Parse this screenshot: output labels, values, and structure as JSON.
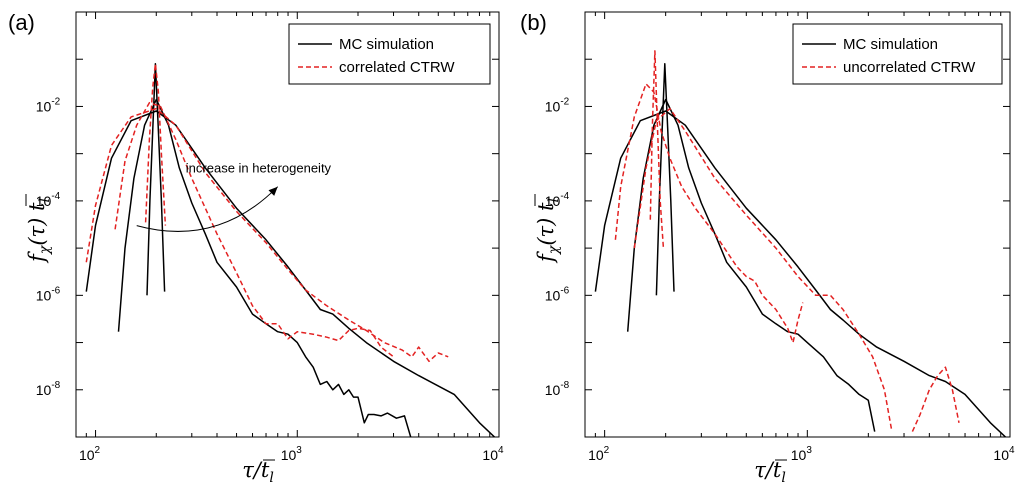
{
  "chart_data": [
    {
      "panel_label": "(a)",
      "type": "line",
      "xlabel": "τ/t̄_l",
      "ylabel": "f_χ(τ) t̄_l",
      "xscale": "log",
      "yscale": "log",
      "xlim": [
        80,
        10000
      ],
      "ylim": [
        1e-09,
        1
      ],
      "xticks": [
        {
          "base": "10",
          "exp": "2",
          "value": 100
        },
        {
          "base": "10",
          "exp": "3",
          "value": 1000
        },
        {
          "base": "10",
          "exp": "4",
          "value": 10000
        }
      ],
      "yticks": [
        {
          "base": "10",
          "exp": "-8",
          "value": 1e-08
        },
        {
          "base": "10",
          "exp": "-6",
          "value": 1e-06
        },
        {
          "base": "10",
          "exp": "-4",
          "value": 0.0001
        },
        {
          "base": "10",
          "exp": "-2",
          "value": 0.01
        }
      ],
      "grid": false,
      "legend": {
        "position": "top-right",
        "entries": [
          {
            "label": "MC simulation",
            "color": "#000000",
            "style": "solid"
          },
          {
            "label": "correlated CTRW",
            "color": "#e32222",
            "style": "dashed"
          }
        ]
      },
      "annotation": {
        "text": "increase in heterogeneity",
        "arrow_from": [
          160,
          3e-05
        ],
        "arrow_to": [
          800,
          0.0002
        ],
        "text_at": [
          280,
          0.0002
        ]
      },
      "series": [
        {
          "name": "MC simulation",
          "color": "#000000",
          "style": "solid",
          "points": [
            [
              180,
              1e-06
            ],
            [
              186,
              0.0001
            ],
            [
              192,
              0.003
            ],
            [
              198,
              0.08
            ],
            [
              205,
              0.003
            ],
            [
              212,
              0.0001
            ],
            [
              220,
              1.2e-06
            ]
          ]
        },
        {
          "name": "MC simulation",
          "color": "#000000",
          "style": "solid",
          "points": [
            [
              130,
              1.7e-07
            ],
            [
              140,
              1e-05
            ],
            [
              155,
              0.0003
            ],
            [
              175,
              0.004
            ],
            [
              200,
              0.014
            ],
            [
              230,
              0.004
            ],
            [
              260,
              0.0005
            ],
            [
              300,
              9e-05
            ],
            [
              350,
              2e-05
            ],
            [
              400,
              5e-06
            ],
            [
              500,
              1.5e-06
            ],
            [
              600,
              4e-07
            ],
            [
              700,
              2.5e-07
            ],
            [
              800,
              1.7e-07
            ],
            [
              900,
              1.5e-07
            ],
            [
              1000,
              1e-07
            ],
            [
              1100,
              5e-08
            ],
            [
              1200,
              3e-08
            ],
            [
              1300,
              1.3e-08
            ],
            [
              1400,
              1.5e-08
            ],
            [
              1500,
              1e-08
            ],
            [
              1600,
              1.3e-08
            ],
            [
              1700,
              8e-09
            ],
            [
              1800,
              1e-08
            ],
            [
              1900,
              7e-09
            ],
            [
              2000,
              7e-09
            ],
            [
              2150,
              2e-09
            ],
            [
              2250,
              3e-09
            ],
            [
              2400,
              3e-09
            ],
            [
              2600,
              2.8e-09
            ],
            [
              2800,
              3.2e-09
            ],
            [
              3100,
              2.5e-09
            ],
            [
              3400,
              2.8e-09
            ],
            [
              3650,
              1e-09
            ]
          ]
        },
        {
          "name": "MC simulation",
          "color": "#000000",
          "style": "solid",
          "points": [
            [
              90,
              1.2e-06
            ],
            [
              100,
              3e-05
            ],
            [
              120,
              0.0008
            ],
            [
              150,
              0.005
            ],
            [
              200,
              0.008
            ],
            [
              250,
              0.004
            ],
            [
              350,
              0.0005
            ],
            [
              500,
              7e-05
            ],
            [
              700,
              1.5e-05
            ],
            [
              900,
              4e-06
            ],
            [
              1100,
              1.3e-06
            ],
            [
              1300,
              5e-07
            ],
            [
              1500,
              4e-07
            ],
            [
              1800,
              2e-07
            ],
            [
              2200,
              1e-07
            ],
            [
              3000,
              4e-08
            ],
            [
              4000,
              2e-08
            ],
            [
              6000,
              8e-09
            ],
            [
              8000,
              2e-09
            ],
            [
              9500,
              1e-09
            ]
          ]
        },
        {
          "name": "correlated CTRW",
          "color": "#e32222",
          "style": "dashed",
          "points": [
            [
              177,
              3.5e-05
            ],
            [
              185,
              0.002
            ],
            [
              192,
              0.025
            ],
            [
              198,
              0.08
            ],
            [
              205,
              0.02
            ],
            [
              212,
              0.001
            ],
            [
              222,
              3e-05
            ]
          ]
        },
        {
          "name": "correlated CTRW",
          "color": "#e32222",
          "style": "dashed",
          "points": [
            [
              125,
              2.5e-05
            ],
            [
              140,
              0.0007
            ],
            [
              160,
              0.004
            ],
            [
              185,
              0.012
            ],
            [
              210,
              0.01
            ],
            [
              250,
              0.002
            ],
            [
              300,
              0.0003
            ],
            [
              400,
              2e-05
            ],
            [
              500,
              3e-06
            ],
            [
              600,
              6e-07
            ],
            [
              700,
              2.5e-07
            ],
            [
              800,
              2.5e-07
            ],
            [
              900,
              1.2e-07
            ],
            [
              1000,
              1.7e-07
            ],
            [
              1200,
              1.5e-07
            ],
            [
              1400,
              1.3e-07
            ],
            [
              1600,
              1.1e-07
            ],
            [
              1800,
              1.8e-07
            ],
            [
              2000,
              2e-07
            ],
            [
              2300,
              1.8e-07
            ],
            [
              2600,
              8e-08
            ],
            [
              3000,
              5e-08
            ]
          ]
        },
        {
          "name": "correlated CTRW",
          "color": "#e32222",
          "style": "dashed",
          "points": [
            [
              90,
              5e-06
            ],
            [
              100,
              8e-05
            ],
            [
              120,
              0.0015
            ],
            [
              150,
              0.006
            ],
            [
              200,
              0.009
            ],
            [
              250,
              0.004
            ],
            [
              350,
              0.0004
            ],
            [
              500,
              6e-05
            ],
            [
              700,
              1.3e-05
            ],
            [
              900,
              3.5e-06
            ],
            [
              1100,
              1.3e-06
            ],
            [
              1400,
              6e-07
            ],
            [
              1800,
              3e-07
            ],
            [
              2200,
              1.8e-07
            ],
            [
              2700,
              1e-07
            ],
            [
              3300,
              7e-08
            ],
            [
              3700,
              5e-08
            ],
            [
              4000,
              8e-08
            ],
            [
              4500,
              4e-08
            ],
            [
              5000,
              6e-08
            ],
            [
              5600,
              5e-08
            ]
          ]
        }
      ]
    },
    {
      "panel_label": "(b)",
      "type": "line",
      "xlabel": "τ/t̄_l",
      "ylabel": "f_χ(τ) t̄_l",
      "xscale": "log",
      "yscale": "log",
      "xlim": [
        80,
        10000
      ],
      "ylim": [
        1e-09,
        1
      ],
      "xticks": [
        {
          "base": "10",
          "exp": "2",
          "value": 100
        },
        {
          "base": "10",
          "exp": "3",
          "value": 1000
        },
        {
          "base": "10",
          "exp": "4",
          "value": 10000
        }
      ],
      "yticks": [
        {
          "base": "10",
          "exp": "-8",
          "value": 1e-08
        },
        {
          "base": "10",
          "exp": "-6",
          "value": 1e-06
        },
        {
          "base": "10",
          "exp": "-4",
          "value": 0.0001
        },
        {
          "base": "10",
          "exp": "-2",
          "value": 0.01
        }
      ],
      "grid": false,
      "legend": {
        "position": "top-right",
        "entries": [
          {
            "label": "MC simulation",
            "color": "#000000",
            "style": "solid"
          },
          {
            "label": "uncorrelated CTRW",
            "color": "#e32222",
            "style": "dashed"
          }
        ]
      },
      "series": [
        {
          "name": "MC simulation",
          "color": "#000000",
          "style": "solid",
          "points": [
            [
              180,
              1e-06
            ],
            [
              186,
              0.0001
            ],
            [
              192,
              0.003
            ],
            [
              198,
              0.08
            ],
            [
              205,
              0.003
            ],
            [
              212,
              0.0001
            ],
            [
              220,
              1.2e-06
            ]
          ]
        },
        {
          "name": "MC simulation",
          "color": "#000000",
          "style": "solid",
          "points": [
            [
              130,
              1.7e-07
            ],
            [
              140,
              1e-05
            ],
            [
              155,
              0.0003
            ],
            [
              175,
              0.004
            ],
            [
              200,
              0.014
            ],
            [
              230,
              0.004
            ],
            [
              260,
              0.0005
            ],
            [
              300,
              9e-05
            ],
            [
              350,
              2e-05
            ],
            [
              400,
              5e-06
            ],
            [
              500,
              1.5e-06
            ],
            [
              600,
              4e-07
            ],
            [
              700,
              2.5e-07
            ],
            [
              800,
              1.7e-07
            ],
            [
              900,
              1.5e-07
            ],
            [
              1000,
              1e-07
            ],
            [
              1200,
              5e-08
            ],
            [
              1400,
              2e-08
            ],
            [
              1600,
              1.3e-08
            ],
            [
              1800,
              8e-09
            ],
            [
              2000,
              6e-09
            ],
            [
              2150,
              1.3e-09
            ]
          ]
        },
        {
          "name": "MC simulation",
          "color": "#000000",
          "style": "solid",
          "points": [
            [
              90,
              1.2e-06
            ],
            [
              100,
              3e-05
            ],
            [
              120,
              0.0008
            ],
            [
              150,
              0.005
            ],
            [
              200,
              0.008
            ],
            [
              250,
              0.004
            ],
            [
              350,
              0.0005
            ],
            [
              500,
              7e-05
            ],
            [
              700,
              1.5e-05
            ],
            [
              900,
              4e-06
            ],
            [
              1100,
              1.3e-06
            ],
            [
              1300,
              5e-07
            ],
            [
              1500,
              3e-07
            ],
            [
              1800,
              1.5e-07
            ],
            [
              2200,
              8e-08
            ],
            [
              3000,
              4e-08
            ],
            [
              4000,
              2e-08
            ],
            [
              4800,
              1.5e-08
            ],
            [
              6000,
              8e-09
            ],
            [
              8000,
              2e-09
            ],
            [
              9500,
              1e-09
            ]
          ]
        },
        {
          "name": "uncorrelated CTRW",
          "color": "#e32222",
          "style": "dashed",
          "points": [
            [
              168,
              4e-05
            ],
            [
              172,
              0.004
            ],
            [
              177,
              0.15
            ],
            [
              182,
              0.004
            ],
            [
              188,
              0.0001
            ],
            [
              195,
              1e-05
            ]
          ]
        },
        {
          "name": "uncorrelated CTRW",
          "color": "#e32222",
          "style": "dashed",
          "points": [
            [
              113,
              1.5e-05
            ],
            [
              120,
              0.0002
            ],
            [
              140,
              0.006
            ],
            [
              160,
              0.03
            ],
            [
              175,
              0.02
            ],
            [
              190,
              0.003
            ],
            [
              210,
              0.0008
            ],
            [
              240,
              0.0002
            ],
            [
              280,
              7e-05
            ],
            [
              350,
              2e-05
            ],
            [
              450,
              4e-06
            ],
            [
              500,
              2.5e-06
            ],
            [
              550,
              2e-06
            ],
            [
              600,
              1e-06
            ],
            [
              700,
              5e-07
            ],
            [
              800,
              2e-07
            ],
            [
              850,
              1e-07
            ],
            [
              900,
              3e-07
            ],
            [
              950,
              7e-07
            ]
          ]
        },
        {
          "name": "uncorrelated CTRW",
          "color": "#e32222",
          "style": "dashed",
          "points": [
            [
              140,
              1e-05
            ],
            [
              160,
              0.0005
            ],
            [
              180,
              0.005
            ],
            [
              210,
              0.009
            ],
            [
              250,
              0.003
            ],
            [
              350,
              0.0003
            ],
            [
              500,
              5e-05
            ],
            [
              700,
              1e-05
            ],
            [
              900,
              2.5e-06
            ],
            [
              1100,
              1e-06
            ],
            [
              1300,
              1e-06
            ],
            [
              1500,
              5e-07
            ],
            [
              1800,
              1.5e-07
            ],
            [
              2100,
              5e-08
            ],
            [
              2400,
              1e-08
            ],
            [
              2600,
              1.5e-09
            ]
          ]
        },
        {
          "name": "uncorrelated CTRW",
          "color": "#e32222",
          "style": "dashed",
          "points": [
            [
              3300,
              1.3e-09
            ],
            [
              3600,
              3e-09
            ],
            [
              4000,
              1e-08
            ],
            [
              4400,
              2e-08
            ],
            [
              4800,
              3e-08
            ],
            [
              5200,
              1e-08
            ],
            [
              5600,
              2e-09
            ]
          ]
        }
      ]
    }
  ]
}
